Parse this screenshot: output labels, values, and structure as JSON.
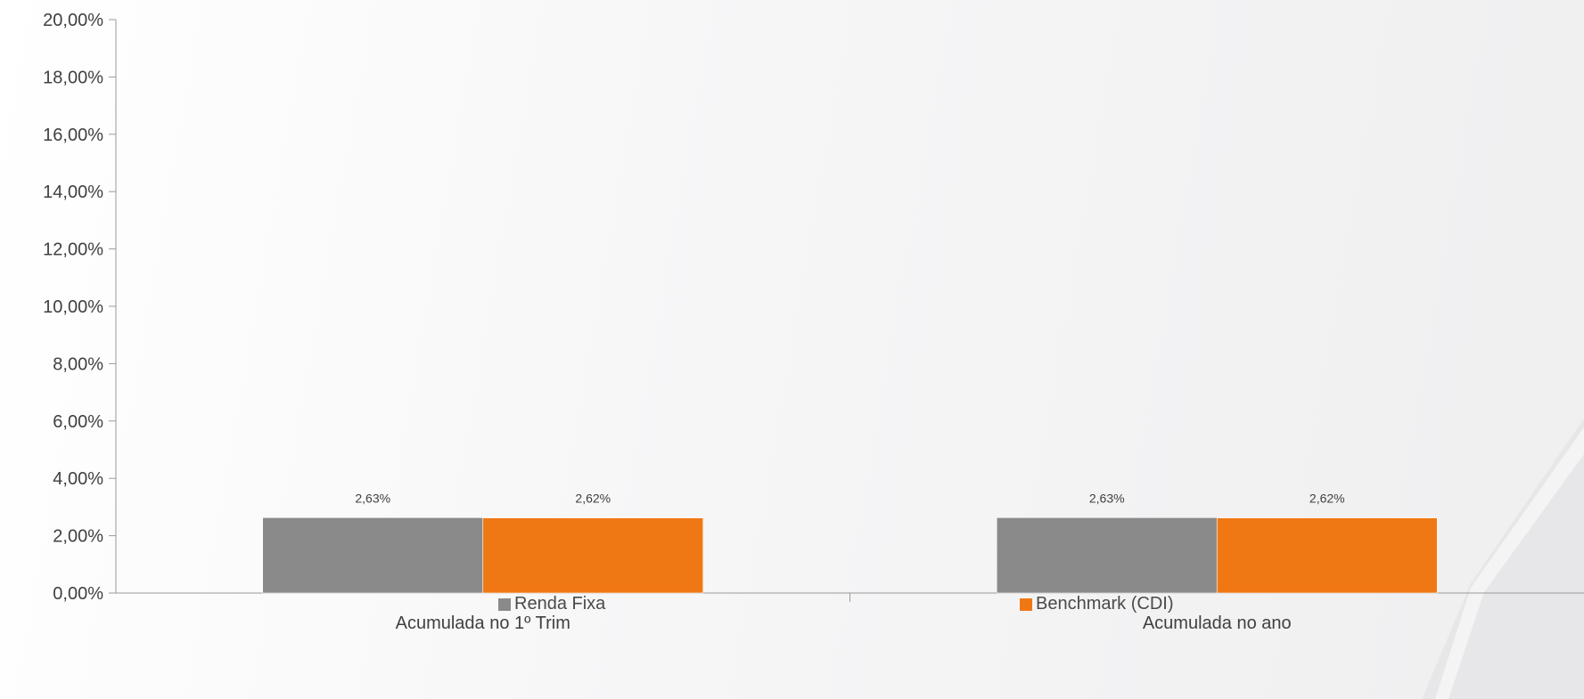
{
  "chart_data": {
    "type": "bar",
    "categories": [
      "Acumulada no 1º Trim",
      "Acumulada no ano"
    ],
    "series": [
      {
        "name": "Renda Fixa",
        "values": [
          2.63,
          2.63
        ],
        "labels": [
          "2,63%",
          "2,63%"
        ],
        "color": "#8a8a8a"
      },
      {
        "name": "Benchmark (CDI)",
        "values": [
          2.62,
          2.62
        ],
        "labels": [
          "2,62%",
          "2,62%"
        ],
        "color": "#f07814"
      }
    ],
    "ylim": [
      0,
      20
    ],
    "yticks": [
      0,
      2,
      4,
      6,
      8,
      10,
      12,
      14,
      16,
      18,
      20
    ],
    "ytick_labels": [
      "0,00%",
      "2,00%",
      "4,00%",
      "6,00%",
      "8,00%",
      "10,00%",
      "12,00%",
      "14,00%",
      "16,00%",
      "18,00%",
      "20,00%"
    ],
    "title": "",
    "xlabel": "",
    "ylabel": "",
    "grid": false,
    "legend_position": "bottom"
  }
}
